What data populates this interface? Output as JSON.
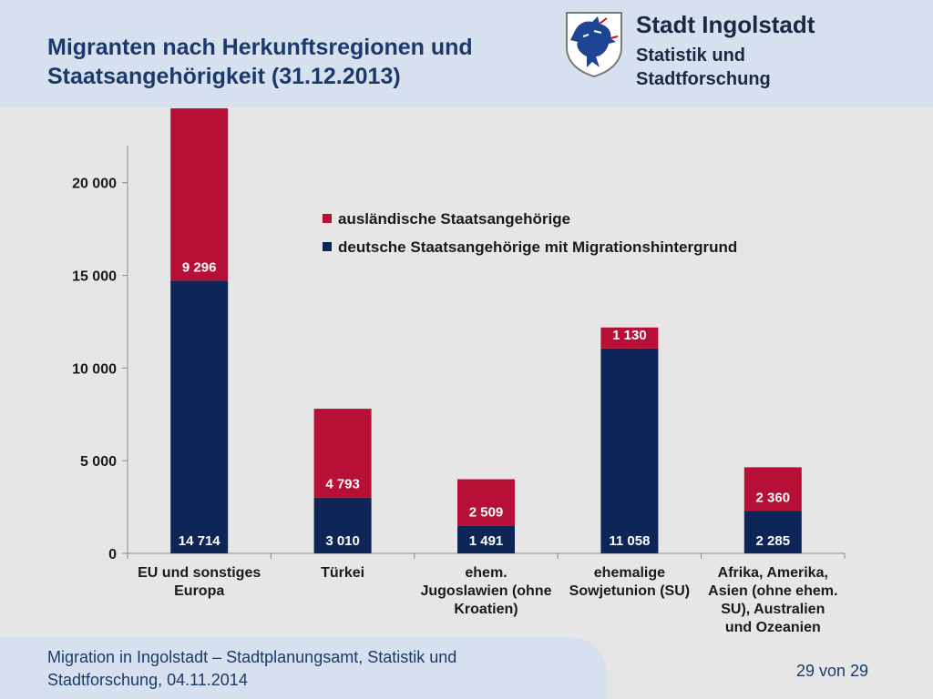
{
  "header": {
    "title_line1": "Migranten nach Herkunftsregionen und",
    "title_line2": "Staatsangehörigkeit (31.12.2013)",
    "org_name": "Stadt Ingolstadt",
    "org_sub_line1": "Statistik und",
    "org_sub_line2": "Stadtforschung",
    "crest_icon": "city-crest-panther-icon"
  },
  "footer": {
    "line1": "Migration in Ingolstadt – Stadtplanungsamt, Statistik und",
    "line2": "Stadtforschung, 04.11.2014",
    "page": "29 von 29"
  },
  "colors": {
    "foreign": "#b70f35",
    "german": "#0e2557",
    "title": "#1b3a6b"
  },
  "chart_data": {
    "type": "bar",
    "stacked": true,
    "categories": [
      [
        "EU und sonstiges",
        "Europa"
      ],
      [
        "Türkei"
      ],
      [
        "ehem.",
        "Jugoslawien (ohne",
        "Kroatien)"
      ],
      [
        "ehemalige",
        "Sowjetunion (SU)"
      ],
      [
        "Afrika, Amerika,",
        "Asien (ohne ehem.",
        "SU), Australien",
        "und Ozeanien"
      ]
    ],
    "series": [
      {
        "name": "deutsche Staatsangehörige mit Migrationshintergrund",
        "color": "#0e2557",
        "values": [
          14714,
          3010,
          1491,
          11058,
          2285
        ],
        "labels": [
          "14 714",
          "3 010",
          "1 491",
          "11 058",
          "2 285"
        ]
      },
      {
        "name": "ausländische Staatsangehörige",
        "color": "#b70f35",
        "values": [
          9296,
          4793,
          2509,
          1130,
          2360
        ],
        "labels": [
          "9 296",
          "4 793",
          "2 509",
          "1 130",
          "2 360"
        ]
      }
    ],
    "legend_order": [
      1,
      0
    ],
    "legend_position": "top-right",
    "yticks": [
      0,
      5000,
      10000,
      15000,
      20000
    ],
    "ytick_labels": [
      "0",
      "5 000",
      "10 000",
      "15 000",
      "20 000"
    ],
    "ylim": [
      0,
      22000
    ],
    "grid": false
  }
}
